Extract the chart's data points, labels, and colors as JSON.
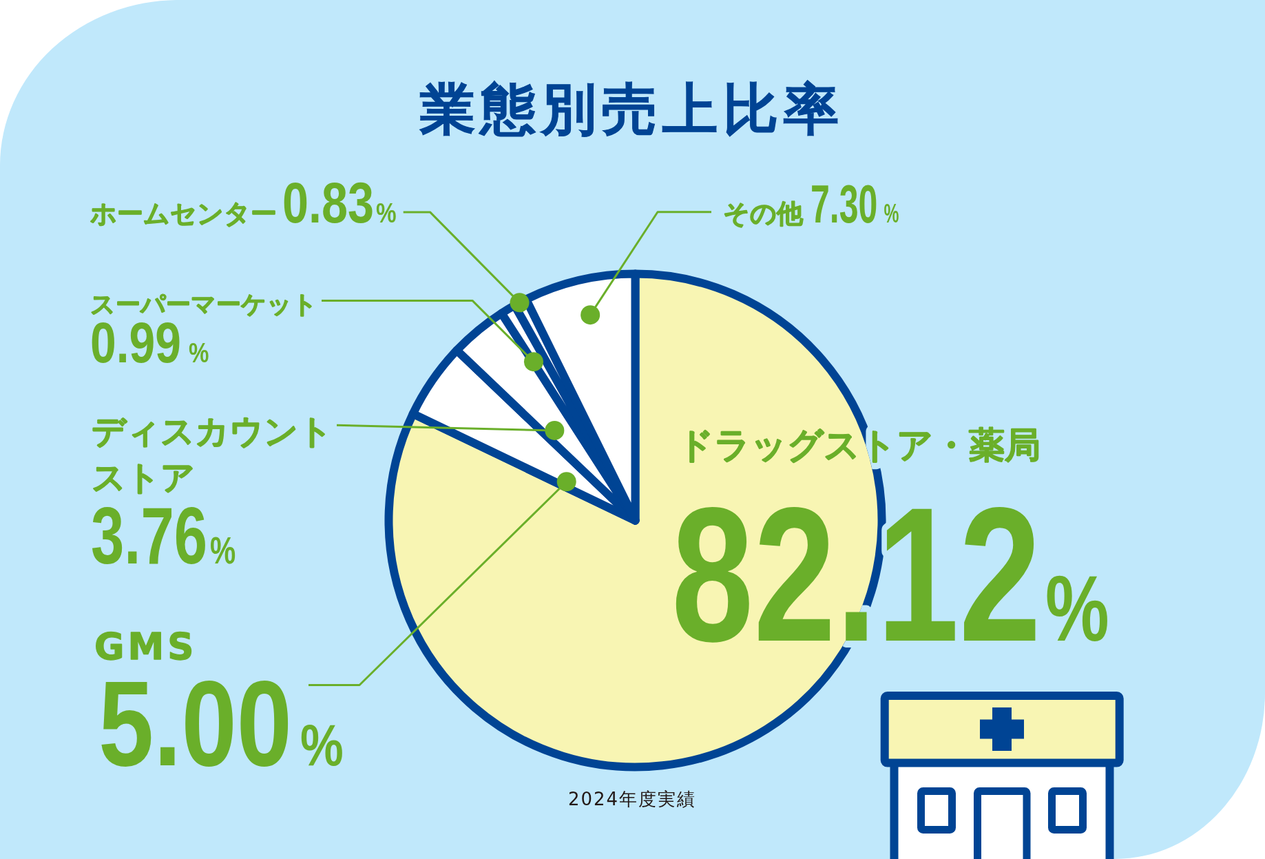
{
  "chart_data": {
    "type": "pie",
    "title": "業態別売上比率",
    "categories": [
      "ドラッグストア・薬局",
      "GMS",
      "ディスカウントストア",
      "スーパーマーケット",
      "ホームセンター",
      "その他"
    ],
    "values": [
      82.12,
      5.0,
      3.76,
      0.99,
      0.83,
      7.3
    ],
    "colors": [
      "#f8f5b3",
      "#ffffff",
      "#ffffff",
      "#ffffff",
      "#ffffff",
      "#ffffff"
    ],
    "value_labels": [
      "82.12%",
      "5.00%",
      "3.76%",
      "0.99%",
      "0.83%",
      "7.30%"
    ],
    "annotations": [
      "2024年度実績"
    ]
  }
}
